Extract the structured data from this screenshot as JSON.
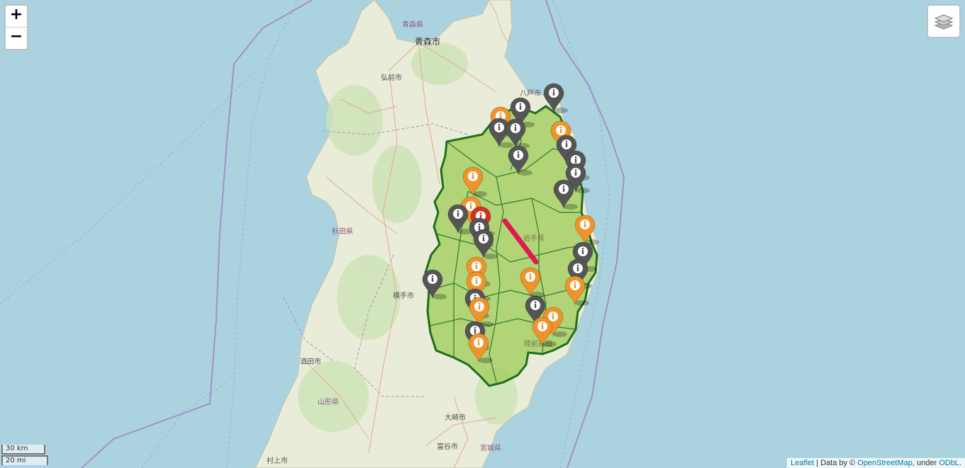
{
  "zoom": {
    "in_label": "+",
    "out_label": "−"
  },
  "scale": {
    "km": "30 km",
    "mi": "20 mi"
  },
  "attribution": {
    "leaflet": "Leaflet",
    "sep": " | Data by © ",
    "osm": "OpenStreetMap",
    "under": ", under ",
    "odbl": "ODbL",
    "dot": "."
  },
  "places": {
    "aomori_pref": "青森県",
    "aomori_city": "青森市",
    "hirosaki": "弘前市",
    "hachinohe": "八戸市",
    "akita_pref": "秋田県",
    "iwate_pref": "岩手県",
    "yokote": "横手市",
    "sakata": "酒田市",
    "yamagata_pref": "山形県",
    "osaki": "大崎市",
    "tome": "富谷市",
    "miyagi_pref": "宮城県",
    "murakami": "村上市",
    "rikuzentakata": "陸前高田"
  },
  "colors": {
    "orange_marker": "#f0932b",
    "gray_marker": "#555555",
    "red_marker": "#cc3322",
    "route": "#e0194f",
    "region_fill": "#9ccc55",
    "region_border": "#1f6e1f"
  },
  "markers": [
    {
      "color": "orange",
      "icon": "info-icon"
    },
    {
      "color": "gray",
      "icon": "info-icon"
    },
    {
      "color": "gray",
      "icon": "info-icon"
    },
    {
      "color": "gray",
      "icon": "info-icon"
    },
    {
      "color": "gray",
      "icon": "info-icon"
    },
    {
      "color": "orange",
      "icon": "info-icon"
    },
    {
      "color": "gray",
      "icon": "info-icon"
    },
    {
      "color": "gray",
      "icon": "info-icon"
    },
    {
      "color": "gray",
      "icon": "info-icon"
    },
    {
      "color": "gray",
      "icon": "info-icon"
    },
    {
      "color": "orange",
      "icon": "info-icon"
    },
    {
      "color": "gray",
      "icon": "info-icon"
    },
    {
      "color": "orange",
      "icon": "info-icon"
    },
    {
      "color": "gray",
      "icon": "info-icon"
    },
    {
      "color": "red",
      "icon": "info-icon"
    },
    {
      "color": "gray",
      "icon": "info-icon"
    },
    {
      "color": "gray",
      "icon": "info-icon"
    },
    {
      "color": "orange",
      "icon": "info-icon"
    },
    {
      "color": "gray",
      "icon": "info-icon"
    },
    {
      "color": "gray",
      "icon": "info-icon"
    },
    {
      "color": "orange",
      "icon": "info-icon"
    },
    {
      "color": "orange",
      "icon": "info-icon"
    },
    {
      "color": "gray",
      "icon": "info-icon"
    },
    {
      "color": "orange",
      "icon": "info-icon"
    },
    {
      "color": "orange",
      "icon": "info-icon"
    },
    {
      "color": "gray",
      "icon": "info-icon"
    },
    {
      "color": "orange",
      "icon": "info-icon"
    },
    {
      "color": "orange",
      "icon": "info-icon"
    },
    {
      "color": "gray",
      "icon": "info-icon"
    },
    {
      "color": "orange",
      "icon": "info-icon"
    },
    {
      "color": "orange",
      "icon": "info-icon"
    },
    {
      "color": "gray",
      "icon": "info-icon"
    }
  ]
}
